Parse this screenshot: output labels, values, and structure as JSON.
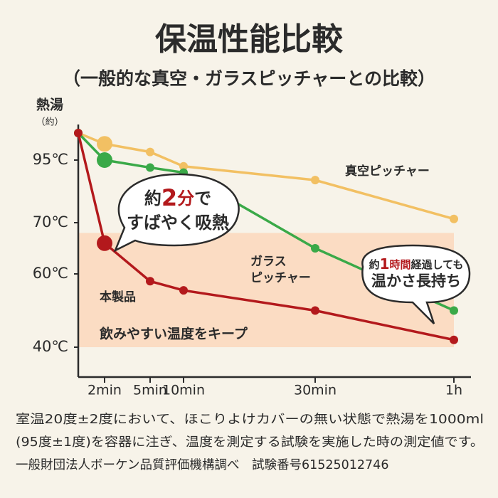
{
  "chart_data": {
    "type": "line",
    "title": "保温性能比較",
    "subtitle": "（一般的な真空・ガラスピッチャーとの比較）",
    "y_label": "熱湯",
    "y_label_note": "（約）",
    "categories": [
      null,
      "2min",
      "5min",
      "10min",
      "30min",
      "1h"
    ],
    "ylim": [
      32,
      100
    ],
    "yticks": [
      {
        "value": 40,
        "label": "40℃"
      },
      {
        "value": 60,
        "label": "60℃"
      },
      {
        "value": 70,
        "label": "70℃"
      },
      {
        "value": 95,
        "label": "95℃"
      }
    ],
    "series": [
      {
        "label": [
          "真空ピッチャー"
        ],
        "color": "#f2c063",
        "values": [
          100,
          98,
          96.5,
          92.5,
          87,
          71.5
        ]
      },
      {
        "label": [
          "ガラス",
          "ピッチャー"
        ],
        "color": "#3aa948",
        "values": [
          100,
          95,
          92,
          90,
          65,
          50
        ]
      },
      {
        "label": [
          "本製品"
        ],
        "color": "#b3191c",
        "values": [
          100,
          66,
          58,
          55.5,
          50,
          42
        ]
      }
    ],
    "band": {
      "from": 40,
      "to": 68,
      "color": "#fbdcc3",
      "label": "飲みやすい温度をキープ"
    },
    "callouts": [
      {
        "lines": [
          [
            "約",
            "2",
            "分",
            "で"
          ],
          [
            "すばやく吸熱"
          ]
        ]
      },
      {
        "lines": [
          [
            "約",
            "1",
            "時間",
            "経過しても"
          ],
          [
            "温かさ長持ち"
          ]
        ]
      }
    ],
    "footnotes": [
      "室温20度±2度において、ほこりよけカバーの無い状態で熱湯を1000ml",
      "(95度±1度)を容器に注ぎ、温度を測定する試験を実施した時の測定値です。",
      "一般財団法人ボーケン品質評価機構調べ　試験番号61525012746"
    ]
  }
}
